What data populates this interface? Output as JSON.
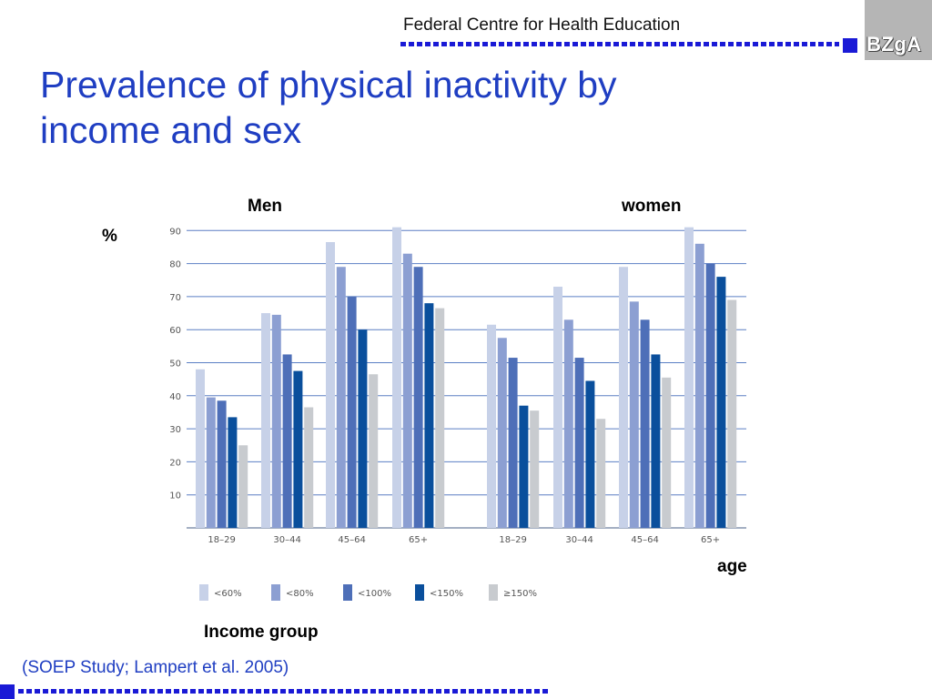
{
  "header": {
    "org_name": "Federal Centre for Health Education",
    "logo_text": "BZgA"
  },
  "slide": {
    "title": "Prevalence of physical inactivity by income and sex",
    "source": "(SOEP Study; Lampert et al. 2005)"
  },
  "chart_data": {
    "type": "bar",
    "title": "",
    "ylabel": "%",
    "xlabel": "age",
    "legend_title": "Income group",
    "ylim": [
      0,
      90
    ],
    "yticks": [
      10,
      20,
      30,
      40,
      50,
      60,
      70,
      80,
      90
    ],
    "grid": true,
    "legend_position": "bottom",
    "colors": [
      "#c7d1e8",
      "#8c9fd2",
      "#4e6fb8",
      "#0a4f9c",
      "#c8cbcf"
    ],
    "groups": [
      {
        "label": "Men",
        "categories": [
          "18–29",
          "30–44",
          "45–64",
          "65+"
        ],
        "series": [
          {
            "name": "<60%",
            "values": [
              48,
              65,
              86.5,
              91
            ]
          },
          {
            "name": "<80%",
            "values": [
              39.5,
              64.5,
              79,
              83
            ]
          },
          {
            "name": "<100%",
            "values": [
              38.5,
              52.5,
              70,
              79
            ]
          },
          {
            "name": "<150%",
            "values": [
              33.5,
              47.5,
              60,
              68
            ]
          },
          {
            "name": "≥150%",
            "values": [
              25,
              36.5,
              46.5,
              66.5
            ]
          }
        ]
      },
      {
        "label": "women",
        "categories": [
          "18–29",
          "30–44",
          "45–64",
          "65+"
        ],
        "series": [
          {
            "name": "<60%",
            "values": [
              61.5,
              73,
              79,
              91
            ]
          },
          {
            "name": "<80%",
            "values": [
              57.5,
              63,
              68.5,
              86
            ]
          },
          {
            "name": "<100%",
            "values": [
              51.5,
              51.5,
              63,
              80
            ]
          },
          {
            "name": "<150%",
            "values": [
              37,
              44.5,
              52.5,
              76
            ]
          },
          {
            "name": "≥150%",
            "values": [
              35.5,
              33,
              45.5,
              69
            ]
          }
        ]
      }
    ]
  }
}
